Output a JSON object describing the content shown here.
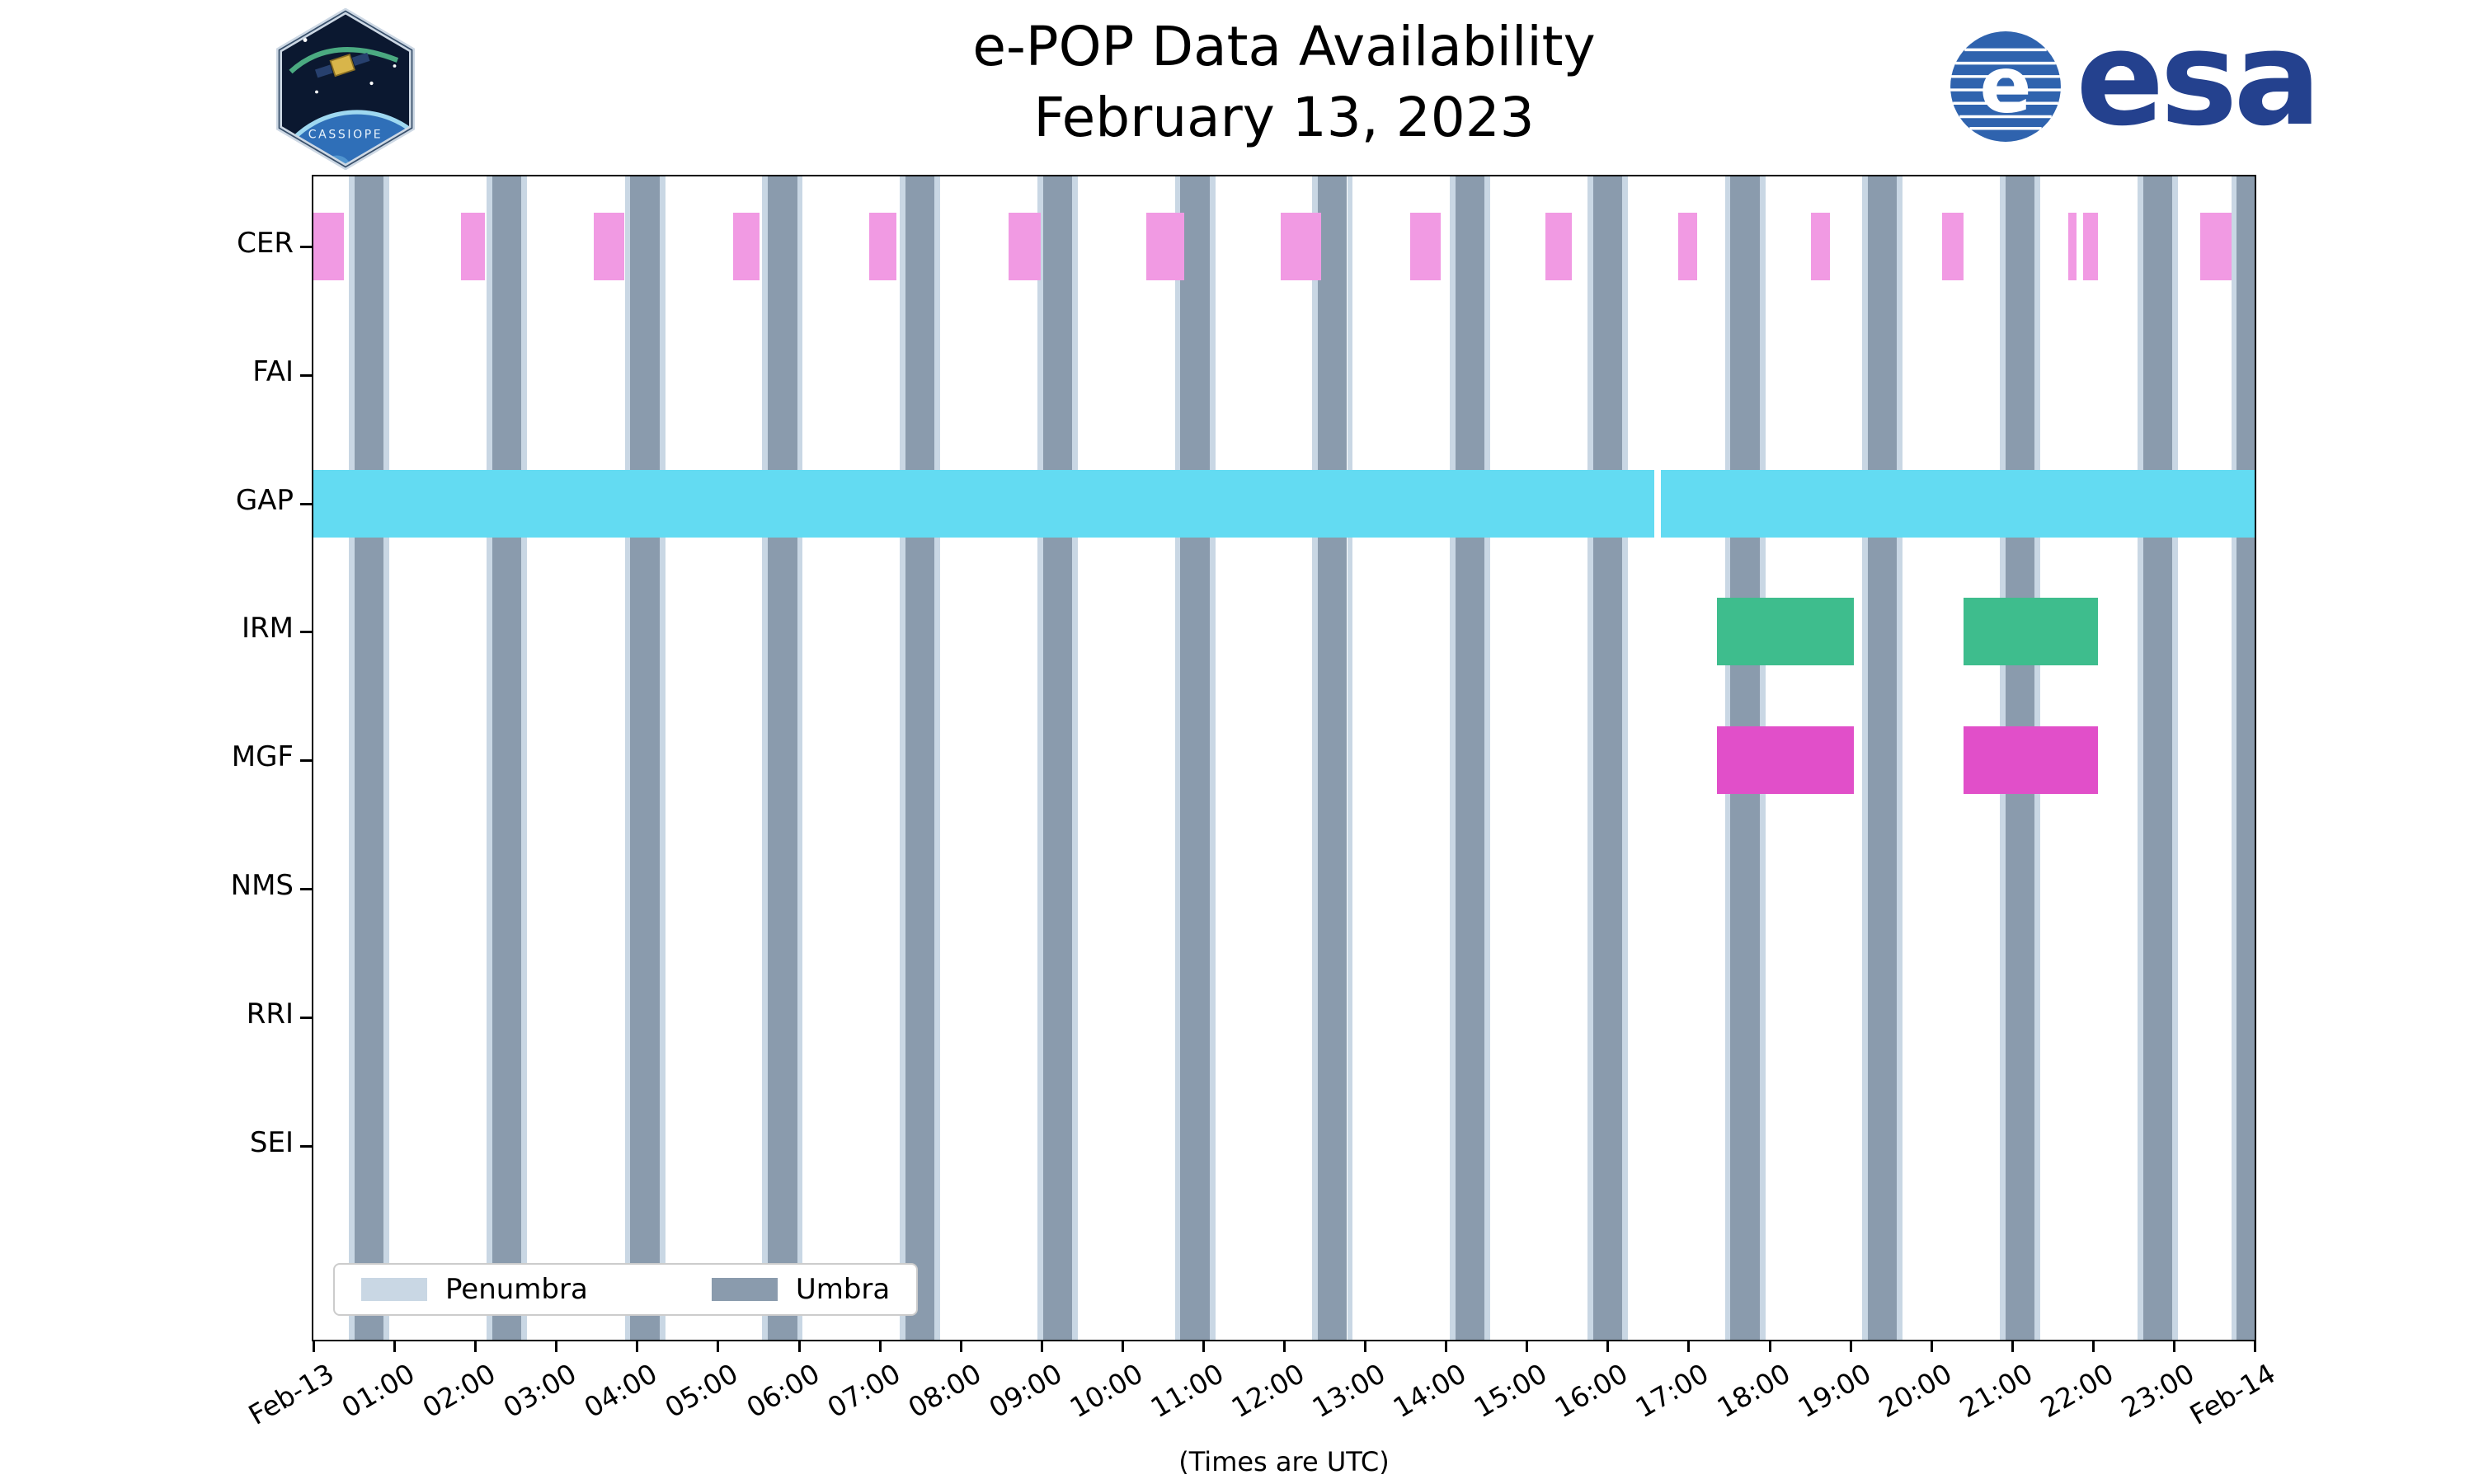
{
  "title": {
    "line1": "e-POP Data Availability",
    "line2": "February 13, 2023"
  },
  "xlabel": "(Times are UTC)",
  "branding": {
    "cassiope_label": "CASSIOPE",
    "esa_label": "esa"
  },
  "legend": {
    "penumbra_label": "Penumbra",
    "umbra_label": "Umbra"
  },
  "chart_data": {
    "type": "timeline-availability",
    "title": "e-POP Data Availability February 13, 2023",
    "x_axis_note": "(Times are UTC)",
    "x_range_hours": [
      0,
      24
    ],
    "x_tick_labels": [
      "Feb-13",
      "01:00",
      "02:00",
      "03:00",
      "04:00",
      "05:00",
      "06:00",
      "07:00",
      "08:00",
      "09:00",
      "10:00",
      "11:00",
      "12:00",
      "13:00",
      "14:00",
      "15:00",
      "16:00",
      "17:00",
      "18:00",
      "19:00",
      "20:00",
      "21:00",
      "22:00",
      "23:00",
      "Feb-14"
    ],
    "rows": [
      "CER",
      "FAI",
      "GAP",
      "IRM",
      "MGF",
      "NMS",
      "RRI",
      "SEI"
    ],
    "legend_position": "lower left",
    "eclipse": {
      "umbra_color": "#8a9bad",
      "penumbra_color": "#c9d7e4",
      "penumbra_edge_hours": 0.07,
      "umbra_intervals_hours": [
        [
          0.51,
          0.87
        ],
        [
          2.21,
          2.57
        ],
        [
          3.92,
          4.28
        ],
        [
          5.62,
          5.98
        ],
        [
          7.32,
          7.68
        ],
        [
          9.02,
          9.38
        ],
        [
          10.72,
          11.08
        ],
        [
          12.42,
          12.78
        ],
        [
          14.12,
          14.48
        ],
        [
          15.82,
          16.18
        ],
        [
          17.52,
          17.88
        ],
        [
          19.22,
          19.58
        ],
        [
          20.92,
          21.28
        ],
        [
          22.62,
          22.98
        ],
        [
          23.78,
          24.0
        ]
      ]
    },
    "availability": [
      {
        "row": "CER",
        "color": "#f19ae3",
        "intervals": [
          [
            0.0,
            0.38
          ],
          [
            1.82,
            2.12
          ],
          [
            3.47,
            3.84
          ],
          [
            5.19,
            5.52
          ],
          [
            6.87,
            7.21
          ],
          [
            8.59,
            8.99
          ],
          [
            10.3,
            10.77
          ],
          [
            11.96,
            12.46
          ],
          [
            13.56,
            13.94
          ],
          [
            15.23,
            15.56
          ],
          [
            16.87,
            17.11
          ],
          [
            18.51,
            18.75
          ],
          [
            20.14,
            20.4
          ],
          [
            21.7,
            21.8
          ],
          [
            21.88,
            22.06
          ],
          [
            23.33,
            23.71
          ]
        ]
      },
      {
        "row": "FAI",
        "color": "#f19ae3",
        "intervals": []
      },
      {
        "row": "GAP",
        "color": "#63dbf2",
        "intervals": [
          [
            0.0,
            16.58
          ],
          [
            16.66,
            24.0
          ]
        ]
      },
      {
        "row": "IRM",
        "color": "#3ebd8d",
        "intervals": [
          [
            17.35,
            19.05
          ],
          [
            20.4,
            22.06
          ]
        ]
      },
      {
        "row": "MGF",
        "color": "#e14fc9",
        "intervals": [
          [
            17.35,
            19.05
          ],
          [
            20.4,
            22.06
          ]
        ]
      },
      {
        "row": "NMS",
        "color": "#f19ae3",
        "intervals": []
      },
      {
        "row": "RRI",
        "color": "#f19ae3",
        "intervals": []
      },
      {
        "row": "SEI",
        "color": "#f19ae3",
        "intervals": []
      }
    ]
  }
}
